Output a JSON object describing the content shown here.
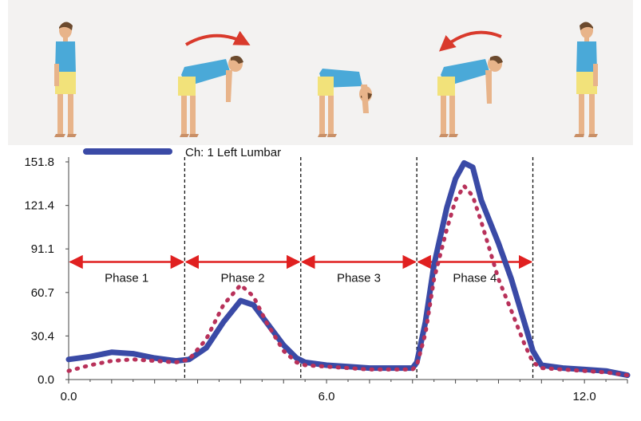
{
  "illustration": {
    "poses": [
      "standing-upright",
      "bending-forward",
      "full-forward-flexion",
      "returning-upright",
      "standing-upright"
    ],
    "arrows": [
      "forward-bend-arrow",
      "return-arrow"
    ],
    "colors": {
      "shirt": "#4aa9d8",
      "shorts": "#f2e27a",
      "skin": "#e8b48a",
      "hair": "#6b4a2e",
      "arrow": "#d93a2c",
      "panel_bg": "#f3f2f1"
    }
  },
  "chart_data": {
    "type": "line",
    "xlim": [
      0,
      13
    ],
    "ylim": [
      0,
      151.8
    ],
    "x_ticks": [
      "0.0",
      "6.0",
      "12.0"
    ],
    "y_ticks": [
      "0.0",
      "30.4",
      "60.7",
      "91.1",
      "121.4",
      "151.8"
    ],
    "legend": {
      "label": "Ch: 1 Left Lumbar",
      "position": "top-left"
    },
    "colors": {
      "series_solid": "#3a4aa6",
      "series_dotted": "#b8315a",
      "phase_arrow": "#e02020"
    },
    "series": [
      {
        "name": "Ch: 1 Left Lumbar",
        "style": "solid",
        "x": [
          0,
          0.5,
          1,
          1.5,
          2,
          2.5,
          2.8,
          3.2,
          3.6,
          4,
          4.3,
          4.6,
          5,
          5.3,
          5.5,
          6,
          6.5,
          7,
          7.5,
          8,
          8.1,
          8.3,
          8.5,
          8.8,
          9,
          9.2,
          9.4,
          9.6,
          9.8,
          10,
          10.3,
          10.6,
          10.8,
          11,
          11.5,
          12,
          12.5,
          13
        ],
        "y": [
          14,
          16,
          19,
          18,
          15,
          13,
          14,
          22,
          40,
          55,
          52,
          40,
          24,
          15,
          12,
          10,
          9,
          8,
          8,
          8,
          12,
          40,
          80,
          120,
          140,
          151,
          148,
          125,
          110,
          95,
          70,
          40,
          20,
          10,
          8,
          7,
          6,
          3
        ]
      },
      {
        "name": "",
        "style": "dotted",
        "x": [
          0,
          0.5,
          1,
          1.5,
          2,
          2.5,
          2.8,
          3.2,
          3.6,
          4,
          4.3,
          4.6,
          5,
          5.3,
          5.5,
          6,
          6.5,
          7,
          7.5,
          8,
          8.1,
          8.3,
          8.5,
          8.8,
          9,
          9.2,
          9.4,
          9.6,
          9.8,
          10,
          10.3,
          10.6,
          10.8,
          11,
          11.5,
          12,
          12.5,
          13
        ],
        "y": [
          6,
          10,
          13,
          14,
          13,
          12,
          14,
          28,
          52,
          66,
          58,
          40,
          20,
          12,
          10,
          9,
          8,
          7,
          7,
          7,
          10,
          32,
          70,
          105,
          125,
          135,
          128,
          110,
          90,
          70,
          48,
          25,
          12,
          8,
          7,
          6,
          5,
          3
        ]
      }
    ],
    "phase_boundaries": [
      2.7,
      5.4,
      8.1,
      10.8
    ],
    "phases": [
      {
        "label": "Phase 1",
        "x_start": 0,
        "x_end": 2.7
      },
      {
        "label": "Phase 2",
        "x_start": 2.7,
        "x_end": 5.4
      },
      {
        "label": "Phase 3",
        "x_start": 5.4,
        "x_end": 8.1
      },
      {
        "label": "Phase 4",
        "x_start": 8.1,
        "x_end": 10.8
      }
    ],
    "phase_arrow_y": 82
  }
}
